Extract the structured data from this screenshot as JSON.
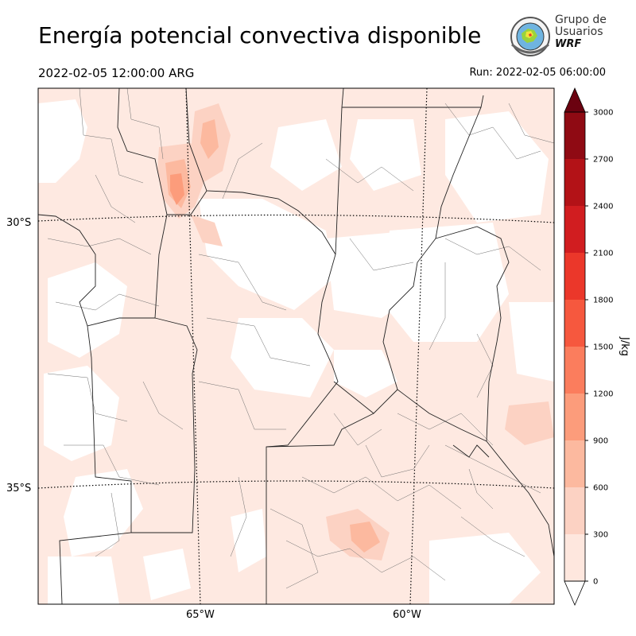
{
  "header": {
    "title": "Energía potencial convectiva disponible",
    "valid_time": "2022-02-05 12:00:00 ARG",
    "run_time": "Run: 2022-02-05 06:00:00"
  },
  "logo": {
    "line1": "Grupo de",
    "line2": "Usuarios",
    "line3": "WRF"
  },
  "map": {
    "latitude_labels": [
      "30°S",
      "35°S"
    ],
    "longitude_labels": [
      "65°W",
      "60°W"
    ]
  },
  "colorbar": {
    "unit_label": "J/kg",
    "ticks": [
      "0",
      "300",
      "600",
      "900",
      "1200",
      "1500",
      "1800",
      "2100",
      "2400",
      "2700",
      "3000"
    ],
    "colors": [
      "#fee7de",
      "#fcd2c3",
      "#fcb99f",
      "#fc9c7b",
      "#fb7d5d",
      "#f6583e",
      "#eb372a",
      "#d11d20",
      "#b31217",
      "#8f0a13",
      "#6b0210"
    ],
    "extend": "both"
  },
  "fill_colors": {
    "background": "#fee9e1",
    "low": "#fcd2c3",
    "mid": "#fcb99f",
    "high": "#fc9c7b"
  }
}
